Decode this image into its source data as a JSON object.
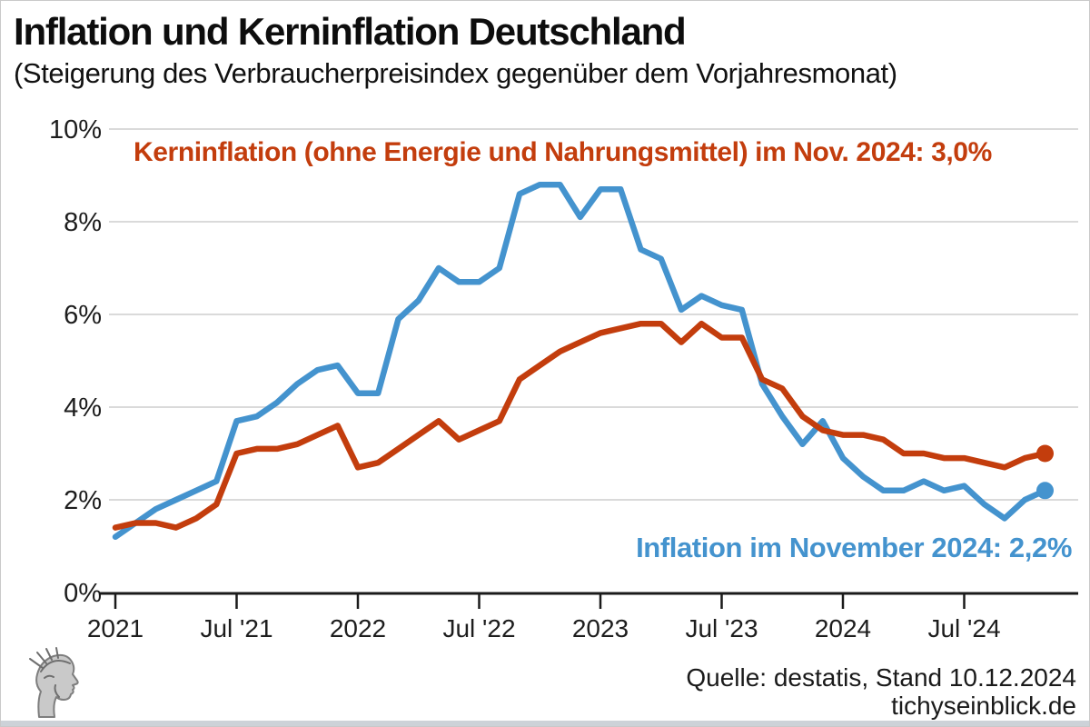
{
  "page": {
    "title": "Inflation und Kerninflation Deutschland",
    "subtitle": "(Steigerung des Verbraucherpreisindex gegenüber dem Vorjahresmonat)",
    "source_line1": "Quelle: destatis, Stand 10.12.2024",
    "source_line2": "tichyseinblick.de",
    "logo_alt": "hermes-head-engraving"
  },
  "chart_data": {
    "type": "line",
    "title": "Inflation und Kerninflation Deutschland",
    "subtitle": "(Steigerung des Verbraucherpreisindex gegenüber dem Vorjahresmonat)",
    "x_start": "Jan 2021",
    "x_end": "Nov 2024",
    "x_step": "1 month",
    "x_ticks": [
      {
        "label": "2021",
        "month": 0
      },
      {
        "label": "Jul '21",
        "month": 6
      },
      {
        "label": "2022",
        "month": 12
      },
      {
        "label": "Jul '22",
        "month": 18
      },
      {
        "label": "2023",
        "month": 24
      },
      {
        "label": "Jul '23",
        "month": 30
      },
      {
        "label": "2024",
        "month": 36
      },
      {
        "label": "Jul '24",
        "month": 42
      }
    ],
    "y_ticks": [
      {
        "label": "0%",
        "value": 0
      },
      {
        "label": "2%",
        "value": 2
      },
      {
        "label": "4%",
        "value": 4
      },
      {
        "label": "6%",
        "value": 6
      },
      {
        "label": "8%",
        "value": 8
      },
      {
        "label": "10%",
        "value": 10
      }
    ],
    "ylim": [
      0,
      10
    ],
    "grid": "horizontal-only",
    "colors": {
      "inflation": "#4493ce",
      "kerninflation": "#c33d0d",
      "grid": "#dadada",
      "axis": "#1a1a1a"
    },
    "series": [
      {
        "id": "inflation",
        "name": "Inflation",
        "color": "#4493ce",
        "end_dot": true,
        "values": [
          1.2,
          1.5,
          1.8,
          2.0,
          2.2,
          2.4,
          3.7,
          3.8,
          4.1,
          4.5,
          4.8,
          4.9,
          4.3,
          4.3,
          5.9,
          6.3,
          7.0,
          6.7,
          6.7,
          7.0,
          8.6,
          8.8,
          8.8,
          8.1,
          8.7,
          8.7,
          7.4,
          7.2,
          6.1,
          6.4,
          6.2,
          6.1,
          4.5,
          3.8,
          3.2,
          3.7,
          2.9,
          2.5,
          2.2,
          2.2,
          2.4,
          2.2,
          2.3,
          1.9,
          1.6,
          2.0,
          2.2
        ]
      },
      {
        "id": "kerninflation",
        "name": "Kerninflation (ohne Energie und Nahrungsmittel)",
        "color": "#c33d0d",
        "end_dot": true,
        "values": [
          1.4,
          1.5,
          1.5,
          1.4,
          1.6,
          1.9,
          3.0,
          3.1,
          3.1,
          3.2,
          3.4,
          3.6,
          2.7,
          2.8,
          3.1,
          3.4,
          3.7,
          3.3,
          3.5,
          3.7,
          4.6,
          4.9,
          5.2,
          5.4,
          5.6,
          5.7,
          5.8,
          5.8,
          5.4,
          5.8,
          5.5,
          5.5,
          4.6,
          4.4,
          3.8,
          3.5,
          3.4,
          3.4,
          3.3,
          3.0,
          3.0,
          2.9,
          2.9,
          2.8,
          2.7,
          2.9,
          3.0
        ]
      }
    ],
    "annotations": [
      {
        "id": "kerninflation-label",
        "text": "Kerninflation (ohne Energie und Nahrungsmittel) im Nov. 2024: 3,0%",
        "color": "#c33d0d",
        "latest_value": "3,0%"
      },
      {
        "id": "inflation-label",
        "text": "Inflation im November 2024: 2,2%",
        "color": "#4493ce",
        "latest_value": "2,2%"
      }
    ]
  }
}
